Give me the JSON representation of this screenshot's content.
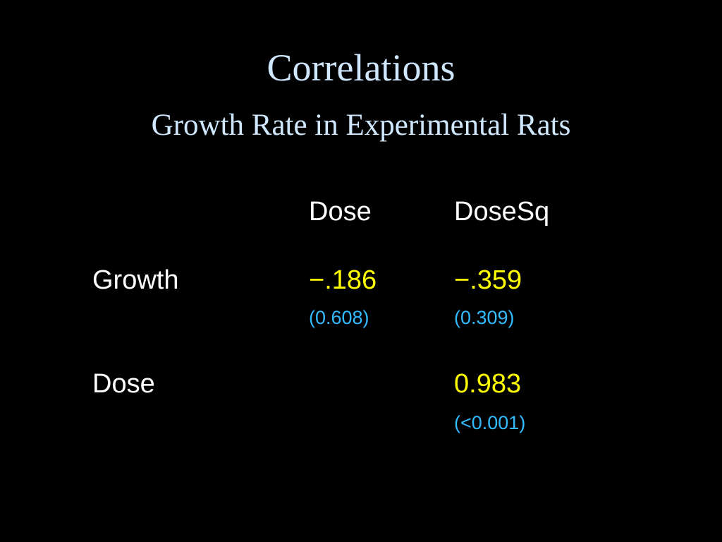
{
  "slide": {
    "title": "Correlations",
    "subtitle": "Growth Rate in Experimental Rats"
  },
  "colors": {
    "background": "#000000",
    "title": "#cfe8ff",
    "label": "#ffffff",
    "correlation": "#ffff00",
    "p_value": "#33bbff"
  },
  "table": {
    "columns": [
      "Dose",
      "DoseSq"
    ],
    "rows": [
      {
        "label": "Growth",
        "cells": [
          {
            "r": "−.186",
            "p": "(0.608)"
          },
          {
            "r": "−.359",
            "p": "(0.309)"
          }
        ]
      },
      {
        "label": "Dose",
        "cells": [
          {
            "r": "",
            "p": ""
          },
          {
            "r": "0.983",
            "p": "(<0.001)"
          }
        ]
      }
    ]
  }
}
